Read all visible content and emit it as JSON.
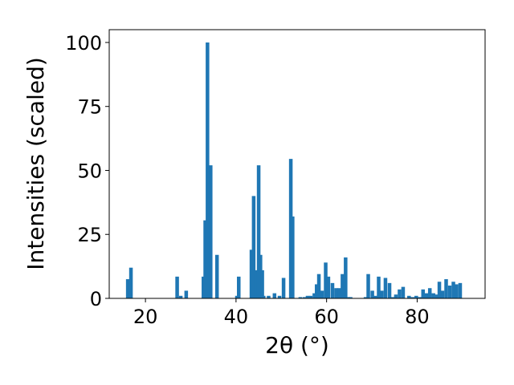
{
  "chart_data": {
    "type": "bar",
    "xlabel": "2θ (°)",
    "ylabel": "Intensities (scaled)",
    "xlim": [
      12,
      95
    ],
    "ylim": [
      0,
      105
    ],
    "x_ticks": [
      20,
      40,
      60,
      80
    ],
    "y_ticks": [
      0,
      25,
      50,
      75,
      100
    ],
    "bar_color": "#1f77b4",
    "bar_width": 0.8,
    "grid": false,
    "legend": "none",
    "x": [
      16.1,
      16.8,
      27.0,
      27.8,
      29.0,
      32.8,
      33.2,
      33.7,
      34.4,
      35.8,
      40.2,
      40.6,
      43.4,
      43.9,
      44.4,
      45.0,
      45.4,
      45.8,
      46.1,
      47.2,
      48.5,
      49.6,
      50.5,
      52.1,
      52.5,
      54.2,
      55.1,
      55.8,
      56.5,
      57.3,
      57.8,
      58.3,
      59.0,
      59.8,
      60.4,
      61.3,
      62.1,
      62.8,
      63.5,
      64.2,
      64.8,
      65.3,
      68.6,
      69.2,
      70.1,
      70.8,
      71.5,
      72.2,
      73.0,
      73.9,
      74.6,
      75.3,
      76.1,
      76.9,
      78.2,
      79.0,
      79.8,
      80.5,
      81.3,
      82.1,
      82.8,
      83.6,
      84.4,
      84.9,
      85.6,
      86.4,
      87.2,
      88.0,
      88.7,
      89.5
    ],
    "values": [
      7.5,
      12,
      8.5,
      1,
      3,
      8.5,
      30.5,
      100,
      52,
      17,
      1,
      8.5,
      19,
      40,
      11,
      52,
      17,
      11,
      1,
      1,
      2,
      1,
      8,
      54.5,
      32,
      0.5,
      0.5,
      1,
      1,
      2,
      5.5,
      9.5,
      3,
      14,
      8.5,
      6,
      4,
      4,
      9.5,
      16,
      0.5,
      0.5,
      0.5,
      9.5,
      3,
      1,
      8.5,
      3,
      8,
      6,
      0.5,
      1.5,
      3.5,
      4.5,
      1,
      0.5,
      1,
      0.5,
      3.5,
      2,
      4,
      2,
      1.5,
      6.5,
      3,
      7.5,
      5,
      6.5,
      5.5,
      6
    ]
  }
}
